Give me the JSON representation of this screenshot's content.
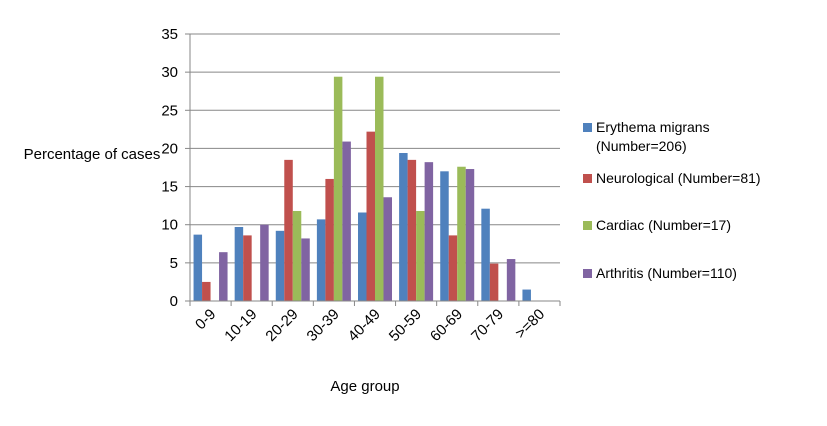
{
  "chart_data": {
    "type": "bar",
    "categories": [
      "0-9",
      "10-19",
      "20-29",
      "30-39",
      "40-49",
      "50-59",
      "60-69",
      "70-79",
      ">=80"
    ],
    "series": [
      {
        "name": "Erythema migrans (Number=206)",
        "color": "#4f81bd",
        "values": [
          8.7,
          9.7,
          9.2,
          10.7,
          11.6,
          19.4,
          17.0,
          12.1,
          1.5
        ]
      },
      {
        "name": "Neurological (Number=81)",
        "color": "#c0504d",
        "values": [
          2.5,
          8.6,
          18.5,
          16.0,
          22.2,
          18.5,
          8.6,
          4.9,
          0
        ]
      },
      {
        "name": "Cardiac (Number=17)",
        "color": "#9bbb59",
        "values": [
          0,
          0,
          11.8,
          29.4,
          29.4,
          11.8,
          17.6,
          0,
          0
        ]
      },
      {
        "name": "Arthritis (Number=110)",
        "color": "#8064a2",
        "values": [
          6.4,
          10.0,
          8.2,
          20.9,
          13.6,
          18.2,
          17.3,
          5.5,
          0
        ]
      }
    ],
    "xlabel": "Age group",
    "ylabel": "Percentage of cases",
    "ylim": [
      0,
      35
    ],
    "yticks": [
      0,
      5,
      10,
      15,
      20,
      25,
      30,
      35
    ],
    "grid": true,
    "legend": "right"
  }
}
